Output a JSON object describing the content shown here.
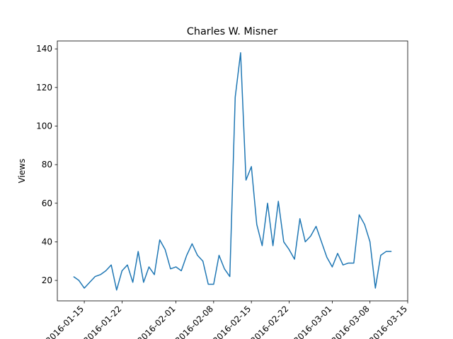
{
  "chart_data": {
    "type": "line",
    "title": "Charles W. Misner",
    "y_label": "Views",
    "x": [
      "2016-01-13",
      "2016-01-14",
      "2016-01-15",
      "2016-01-16",
      "2016-01-17",
      "2016-01-18",
      "2016-01-19",
      "2016-01-20",
      "2016-01-21",
      "2016-01-22",
      "2016-01-23",
      "2016-01-24",
      "2016-01-25",
      "2016-01-26",
      "2016-01-27",
      "2016-01-28",
      "2016-01-29",
      "2016-01-30",
      "2016-01-31",
      "2016-02-01",
      "2016-02-02",
      "2016-02-03",
      "2016-02-04",
      "2016-02-05",
      "2016-02-06",
      "2016-02-07",
      "2016-02-08",
      "2016-02-09",
      "2016-02-10",
      "2016-02-11",
      "2016-02-12",
      "2016-02-13",
      "2016-02-14",
      "2016-02-15",
      "2016-02-16",
      "2016-02-17",
      "2016-02-18",
      "2016-02-19",
      "2016-02-20",
      "2016-02-21",
      "2016-02-22",
      "2016-02-23",
      "2016-02-24",
      "2016-02-25",
      "2016-02-26",
      "2016-02-27",
      "2016-02-28",
      "2016-02-29",
      "2016-03-01",
      "2016-03-02",
      "2016-03-03",
      "2016-03-04",
      "2016-03-05",
      "2016-03-06",
      "2016-03-07",
      "2016-03-08",
      "2016-03-09",
      "2016-03-10",
      "2016-03-11",
      "2016-03-12"
    ],
    "series": [
      {
        "name": "Views",
        "color": "#1f77b4",
        "values": [
          22,
          20,
          16,
          19,
          22,
          23,
          25,
          28,
          15,
          25,
          28,
          19,
          35,
          19,
          27,
          23,
          41,
          36,
          26,
          27,
          25,
          33,
          39,
          33,
          30,
          18,
          18,
          33,
          26,
          22,
          115,
          138,
          72,
          79,
          49,
          38,
          60,
          38,
          61,
          40,
          36,
          31,
          52,
          40,
          43,
          48,
          40,
          32,
          27,
          34,
          28,
          29,
          29,
          54,
          49,
          40,
          16,
          33,
          35,
          35
        ]
      }
    ],
    "xlim": [
      "2016-01-10",
      "2016-03-15"
    ],
    "xticks": [
      "2016-01-15",
      "2016-01-22",
      "2016-02-01",
      "2016-02-08",
      "2016-02-15",
      "2016-02-22",
      "2016-03-01",
      "2016-03-08",
      "2016-03-15"
    ],
    "ylim": [
      9.4,
      144.1
    ],
    "yticks": [
      20,
      40,
      60,
      80,
      100,
      120,
      140
    ]
  }
}
